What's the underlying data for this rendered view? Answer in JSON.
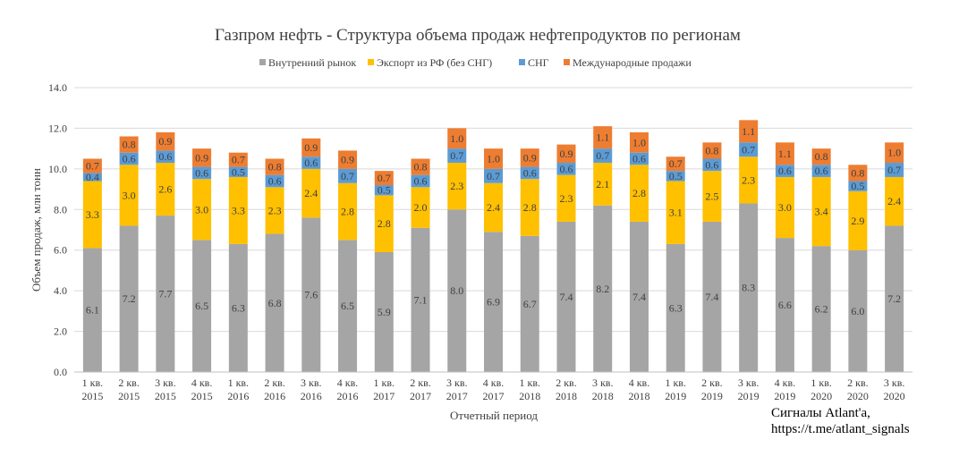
{
  "chart_data": {
    "type": "bar",
    "stacked": true,
    "title": "Газпром нефть - Структура объема продаж нефтепродуктов по регионам",
    "xlabel": "Отчетный период",
    "ylabel": "Объем продаж, млн тонн",
    "ylim": [
      0,
      14
    ],
    "yticks": [
      "0.0",
      "2.0",
      "4.0",
      "6.0",
      "8.0",
      "10.0",
      "12.0",
      "14.0"
    ],
    "grid": true,
    "legend_position": "top",
    "categories": [
      [
        "1 кв.",
        "2015"
      ],
      [
        "2 кв.",
        "2015"
      ],
      [
        "3 кв.",
        "2015"
      ],
      [
        "4 кв.",
        "2015"
      ],
      [
        "1 кв.",
        "2016"
      ],
      [
        "2 кв.",
        "2016"
      ],
      [
        "3 кв.",
        "2016"
      ],
      [
        "4 кв.",
        "2016"
      ],
      [
        "1 кв.",
        "2017"
      ],
      [
        "2 кв.",
        "2017"
      ],
      [
        "3 кв.",
        "2017"
      ],
      [
        "4 кв.",
        "2017"
      ],
      [
        "1 кв.",
        "2018"
      ],
      [
        "2 кв.",
        "2018"
      ],
      [
        "3 кв.",
        "2018"
      ],
      [
        "4 кв.",
        "2018"
      ],
      [
        "1 кв.",
        "2019"
      ],
      [
        "2 кв.",
        "2019"
      ],
      [
        "3 кв.",
        "2019"
      ],
      [
        "4 кв.",
        "2019"
      ],
      [
        "1 кв.",
        "2020"
      ],
      [
        "2 кв.",
        "2020"
      ],
      [
        "3 кв.",
        "2020"
      ]
    ],
    "series": [
      {
        "name": "Внутренний рынок",
        "color": "#a5a5a5",
        "values": [
          6.1,
          7.2,
          7.7,
          6.5,
          6.3,
          6.8,
          7.6,
          6.5,
          5.9,
          7.1,
          8.0,
          6.9,
          6.7,
          7.4,
          8.2,
          7.4,
          6.3,
          7.4,
          8.3,
          6.6,
          6.2,
          6.0,
          7.2
        ]
      },
      {
        "name": "Экспорт из РФ (без СНГ)",
        "color": "#ffc000",
        "values": [
          3.3,
          3.0,
          2.6,
          3.0,
          3.3,
          2.3,
          2.4,
          2.8,
          2.8,
          2.0,
          2.3,
          2.4,
          2.8,
          2.3,
          2.1,
          2.8,
          3.1,
          2.5,
          2.3,
          3.0,
          3.4,
          2.9,
          2.4
        ]
      },
      {
        "name": "СНГ",
        "color": "#5b9bd5",
        "values": [
          0.4,
          0.6,
          0.6,
          0.6,
          0.5,
          0.6,
          0.6,
          0.7,
          0.5,
          0.6,
          0.7,
          0.7,
          0.6,
          0.6,
          0.7,
          0.6,
          0.5,
          0.6,
          0.7,
          0.6,
          0.6,
          0.5,
          0.7
        ]
      },
      {
        "name": "Международные продажи",
        "color": "#ed7d31",
        "values": [
          0.7,
          0.8,
          0.9,
          0.9,
          0.7,
          0.8,
          0.9,
          0.9,
          0.7,
          0.8,
          1.0,
          1.0,
          0.9,
          0.9,
          1.1,
          1.0,
          0.7,
          0.8,
          1.1,
          1.1,
          0.8,
          0.8,
          1.0
        ]
      }
    ]
  },
  "credit": {
    "line1": "Сигналы Atlant'a,",
    "line2": "https://t.me/atlant_signals"
  }
}
